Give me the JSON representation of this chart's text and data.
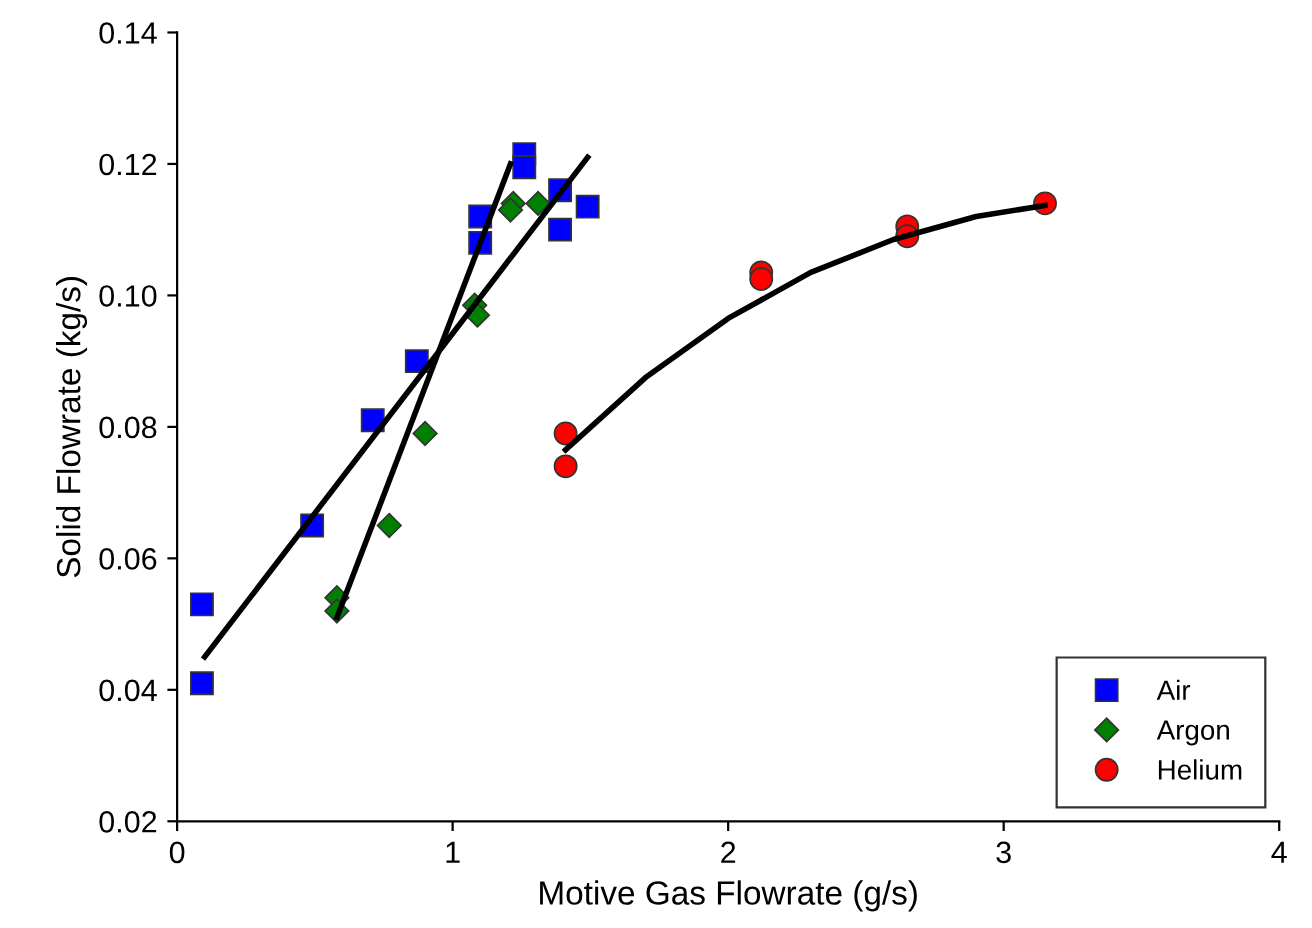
{
  "chart_data": {
    "type": "scatter",
    "xlabel": "Motive Gas Flowrate (g/s)",
    "ylabel": "Solid Flowrate (kg/s)",
    "xlim": [
      0,
      4
    ],
    "ylim": [
      0.02,
      0.14
    ],
    "xticks": [
      0,
      1,
      2,
      3,
      4
    ],
    "yticks": [
      {
        "value": 0.02,
        "label": "0.02"
      },
      {
        "value": 0.04,
        "label": "0.04"
      },
      {
        "value": 0.06,
        "label": "0.06"
      },
      {
        "value": 0.08,
        "label": "0.08"
      },
      {
        "value": 0.1,
        "label": "0.10"
      },
      {
        "value": 0.12,
        "label": "0.12"
      },
      {
        "value": 0.14,
        "label": "0.14"
      }
    ],
    "grid": false,
    "legend": "bottom right",
    "series": [
      {
        "name": "Air",
        "color": "#0000ff",
        "marker": "square",
        "x": [
          0.09,
          0.09,
          0.49,
          0.71,
          0.87,
          1.1,
          1.1,
          1.26,
          1.26,
          1.39,
          1.39,
          1.49
        ],
        "values": [
          0.053,
          0.041,
          0.065,
          0.081,
          0.09,
          0.108,
          0.112,
          0.1215,
          0.1195,
          0.116,
          0.11,
          0.1135
        ]
      },
      {
        "name": "Argon",
        "color": "#008000",
        "marker": "diamond",
        "x": [
          0.58,
          0.58,
          0.77,
          0.9,
          1.08,
          1.09,
          1.22,
          1.21,
          1.31
        ],
        "values": [
          0.054,
          0.052,
          0.065,
          0.079,
          0.0985,
          0.097,
          0.114,
          0.113,
          0.114
        ]
      },
      {
        "name": "Helium",
        "color": "#ff0000",
        "marker": "circle",
        "x": [
          1.41,
          1.41,
          2.12,
          2.12,
          2.65,
          2.65,
          3.15
        ],
        "values": [
          0.079,
          0.074,
          0.1035,
          0.1025,
          0.1105,
          0.109,
          0.114
        ]
      },
      {
        "type": "line",
        "color": "#000000",
        "marker": "none",
        "x": [
          0.1,
          1.49
        ],
        "values": [
          0.045,
          0.121
        ]
      },
      {
        "type": "line",
        "color": "#000000",
        "marker": "none",
        "x": [
          0.58,
          1.21
        ],
        "values": [
          0.051,
          0.12
        ]
      },
      {
        "type": "line",
        "color": "#000000",
        "marker": "none",
        "x": [
          1.41,
          1.7,
          2.0,
          2.3,
          2.6,
          2.9,
          3.15
        ],
        "values": [
          0.0765,
          0.0875,
          0.0965,
          0.1035,
          0.1085,
          0.112,
          0.1137
        ]
      }
    ]
  }
}
